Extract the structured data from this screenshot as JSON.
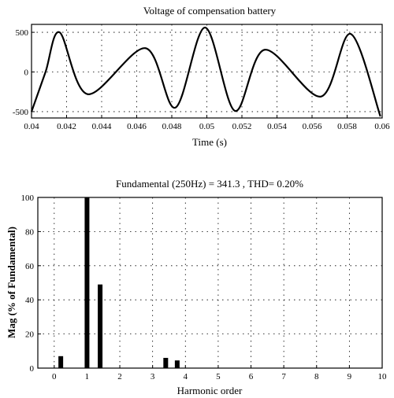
{
  "chart_data": [
    {
      "type": "line",
      "title": "Voltage of compensation battery",
      "xlabel": "Time (s)",
      "ylabel": "",
      "xlim": [
        0.04,
        0.06
      ],
      "ylim": [
        -580,
        600
      ],
      "grid": true,
      "xticks": [
        "0.04",
        "0.042",
        "0.044",
        "0.046",
        "0.048",
        "0.05",
        "0.052",
        "0.054",
        "0.056",
        "0.058",
        "0.06"
      ],
      "yticks": [
        "500",
        "0",
        "-500"
      ],
      "series": [
        {
          "x": [
            0.04,
            0.0408,
            0.0416,
            0.0432,
            0.0465,
            0.0482,
            0.0499,
            0.0516,
            0.0533,
            0.0565,
            0.0582,
            0.0599
          ],
          "y": [
            -500,
            0,
            500,
            -280,
            300,
            -450,
            560,
            -490,
            280,
            -310,
            480,
            -560
          ]
        }
      ]
    },
    {
      "type": "bar",
      "title": "Fundamental (250Hz) = 341.3 , THD= 0.20%",
      "xlabel": "Harmonic order",
      "ylabel": "Mag (% of Fundamental)",
      "xlim": [
        -0.5,
        10
      ],
      "ylim": [
        0,
        100
      ],
      "grid": true,
      "xticks": [
        "0",
        "1",
        "2",
        "3",
        "4",
        "5",
        "6",
        "7",
        "8",
        "9",
        "10"
      ],
      "yticks": [
        "0",
        "20",
        "40",
        "60",
        "80",
        "100"
      ],
      "x": [
        0.2,
        1,
        1.4,
        3.4,
        3.75
      ],
      "values": [
        7,
        100,
        49,
        6,
        4.5
      ]
    }
  ]
}
